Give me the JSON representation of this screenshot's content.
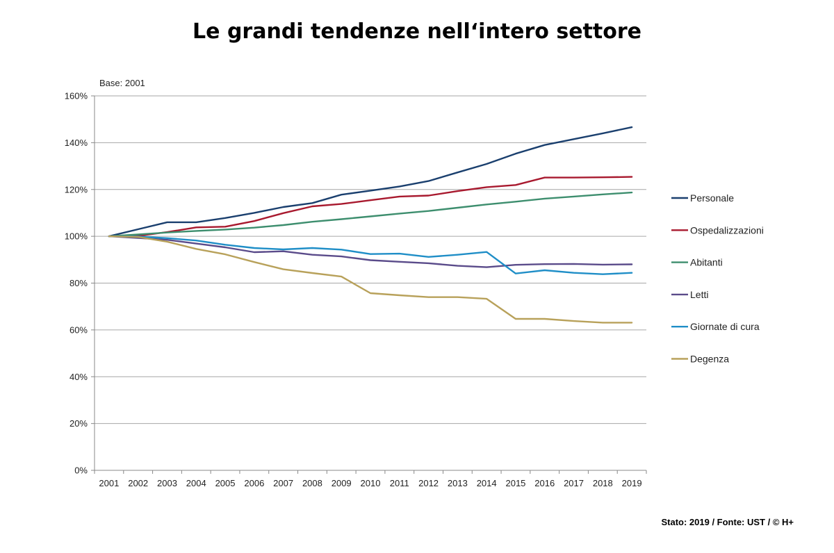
{
  "chart_data": {
    "type": "line",
    "title": "Le grandi tendenze nell‘intero settore",
    "ylabel": "Base: 2001",
    "xlabel": "",
    "ylim": [
      0,
      160
    ],
    "ytick_step": 20,
    "ytick_suffix": "%",
    "grid": "horizontal",
    "legend_position": "right",
    "x": [
      "2001",
      "2002",
      "2003",
      "2004",
      "2005",
      "2006",
      "2007",
      "2008",
      "2009",
      "2010",
      "2011",
      "2012",
      "2013",
      "2014",
      "2015",
      "2016",
      "2017",
      "2018",
      "2019"
    ],
    "series": [
      {
        "name": "Personale",
        "color": "#1a3f6e",
        "values": [
          100,
          103,
          106,
          106,
          107.8,
          110,
          112.5,
          114.2,
          117.8,
          119.5,
          121.3,
          123.6,
          127.3,
          130.9,
          135.3,
          139,
          141.5,
          144,
          146.6
        ]
      },
      {
        "name": "Ospedalizzazioni",
        "color": "#a8192e",
        "values": [
          100,
          100.2,
          101.8,
          103.8,
          104.1,
          106.5,
          109.9,
          112.8,
          113.8,
          115.4,
          117,
          117.4,
          119.3,
          121,
          121.9,
          125.1,
          125.1,
          125.2,
          125.4
        ]
      },
      {
        "name": "Abitanti",
        "color": "#3d8e6e",
        "values": [
          100,
          100.8,
          101.6,
          102.3,
          102.9,
          103.7,
          104.8,
          106.2,
          107.3,
          108.5,
          109.7,
          110.8,
          112.2,
          113.6,
          114.8,
          116.1,
          117,
          117.9,
          118.7
        ]
      },
      {
        "name": "Letti",
        "color": "#5a4b8a",
        "values": [
          100,
          99.3,
          98.5,
          96.9,
          95.3,
          93.2,
          93.6,
          92.1,
          91.4,
          89.8,
          89.1,
          88.5,
          87.4,
          86.8,
          87.8,
          88.1,
          88.2,
          87.9,
          88
        ]
      },
      {
        "name": "Giornate di cura",
        "color": "#1f8ec7",
        "values": [
          100,
          99.9,
          99.2,
          98.2,
          96.4,
          95,
          94.4,
          95,
          94.3,
          92.4,
          92.6,
          91.2,
          92.1,
          93.3,
          84.1,
          85.5,
          84.4,
          83.8,
          84.4
        ]
      },
      {
        "name": "Degenza",
        "color": "#b8a15a",
        "values": [
          100,
          99.7,
          97.7,
          94.6,
          92.3,
          89,
          85.9,
          84.3,
          82.8,
          75.7,
          74.8,
          74,
          74,
          73.3,
          64.7,
          64.7,
          63.8,
          63.1,
          63.1
        ]
      }
    ]
  },
  "footer": {
    "source": "Stato: 2019 / Fonte: UST / © H+"
  }
}
